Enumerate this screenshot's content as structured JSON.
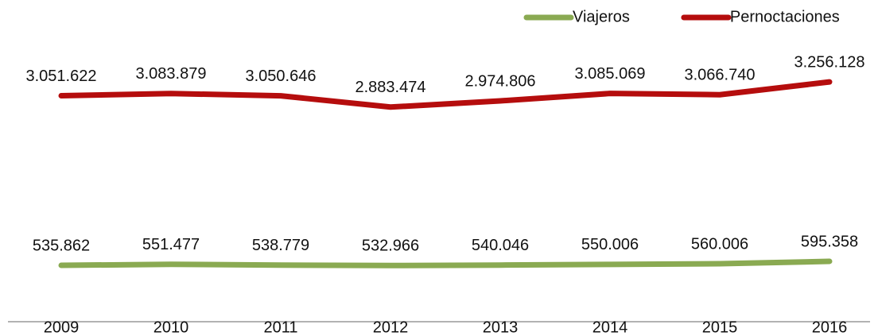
{
  "chart_data": {
    "type": "line",
    "categories": [
      "2009",
      "2010",
      "2011",
      "2012",
      "2013",
      "2014",
      "2015",
      "2016"
    ],
    "series": [
      {
        "name": "Viajeros",
        "color": "#8aaa52",
        "values": [
          535862,
          551477,
          538779,
          532966,
          540046,
          550006,
          560006,
          595358
        ],
        "value_labels": [
          "535.862",
          "551.477",
          "538.779",
          "532.966",
          "540.046",
          "550.006",
          "560.006",
          "595.358"
        ]
      },
      {
        "name": "Pernoctaciones",
        "color": "#b50d0d",
        "values": [
          3051622,
          3083879,
          3050646,
          2883474,
          2974806,
          3085069,
          3066740,
          3256128
        ],
        "value_labels": [
          "3.051.622",
          "3.083.879",
          "3.050.646",
          "2.883.474",
          "2.974.806",
          "3.085.069",
          "3.066.740",
          "3.256.128"
        ]
      }
    ],
    "ylim": [
      -300000,
      4000000
    ],
    "legend": "top-right"
  }
}
